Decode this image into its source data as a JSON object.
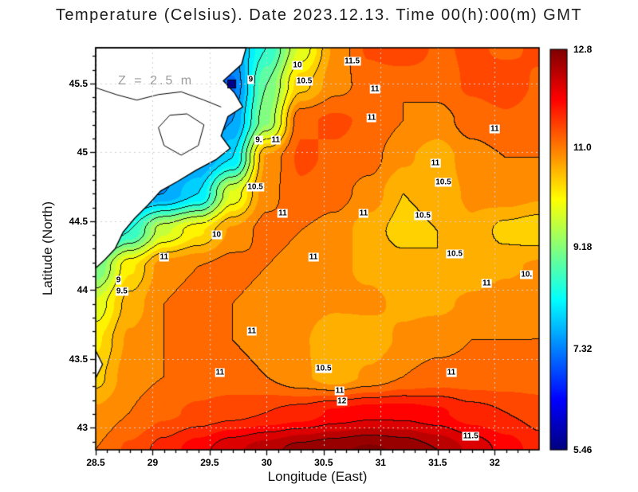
{
  "title": "Temperature (Celsius). Date 2023.12.13. Time 00(h):00(m) GMT",
  "annotation": {
    "text": "Z = 2.5 m",
    "marker": "square",
    "marker_color": "#00008b",
    "marker_lon": 29.69,
    "marker_lat": 45.5
  },
  "axes": {
    "xlabel": "Longitude (East)",
    "ylabel": "Latitude (North)",
    "xlim": [
      28.5,
      32.39
    ],
    "ylim": [
      42.84,
      45.76
    ],
    "xticks": [
      28.5,
      29,
      29.5,
      30,
      30.5,
      31,
      31.5,
      32
    ],
    "xtick_labels": [
      "28.5",
      "29",
      "29.5",
      "30",
      "30.5",
      "31",
      "31.5",
      "32"
    ],
    "yticks": [
      43,
      43.5,
      44,
      44.5,
      45,
      45.5
    ],
    "ytick_labels": [
      "43",
      "43.5",
      "44",
      "44.5",
      "45",
      "45.5"
    ],
    "minor_tick_step": 0.1,
    "grid": "dotted"
  },
  "colorbar": {
    "min": 5.46,
    "max": 12.8,
    "labels": [
      "12.8",
      "11.0",
      "9.18",
      "7.32",
      "5.46"
    ],
    "label_values": [
      12.8,
      11.0,
      9.18,
      7.32,
      5.46
    ]
  },
  "chart_data": {
    "type": "heatmap",
    "variable": "Temperature (Celsius)",
    "date": "2023.12.13",
    "time": "00(h):00(m) GMT",
    "depth": "Z = 2.5 m",
    "contour_interval": 0.5,
    "fill_interval": 0.25,
    "grid_color": "#cfcfcf",
    "land_color": "#ffffff",
    "colormap": {
      "name": "jet",
      "stops": [
        [
          5.46,
          "#000080"
        ],
        [
          6.38,
          "#0000ff"
        ],
        [
          8.21,
          "#00ffff"
        ],
        [
          10.04,
          "#ffff00"
        ],
        [
          11.88,
          "#ff0000"
        ],
        [
          12.8,
          "#800000"
        ]
      ]
    },
    "lon": [
      28.5,
      28.8,
      29.1,
      29.4,
      29.7,
      30.0,
      30.3,
      30.6,
      30.9,
      31.2,
      31.5,
      31.8,
      32.1,
      32.4
    ],
    "lat": [
      45.76,
      45.49,
      45.23,
      44.96,
      44.7,
      44.43,
      44.17,
      43.9,
      43.64,
      43.37,
      43.11,
      42.84
    ],
    "grid": [
      [
        7.0,
        7.0,
        7.0,
        7.0,
        7.5,
        8.5,
        9.8,
        10.8,
        11.3,
        11.5,
        11.2,
        11.3,
        11.2,
        11.3
      ],
      [
        7.0,
        7.0,
        7.0,
        7.0,
        7.2,
        9.0,
        10.4,
        10.9,
        11.1,
        11.0,
        11.1,
        11.3,
        11.4,
        11.2
      ],
      [
        7.0,
        7.0,
        7.0,
        7.0,
        7.5,
        9.2,
        11.2,
        11.3,
        11.2,
        11.0,
        10.9,
        11.1,
        11.2,
        11.1
      ],
      [
        7.2,
        7.2,
        7.2,
        7.4,
        8.0,
        10.8,
        11.3,
        11.2,
        11.1,
        10.8,
        10.6,
        10.9,
        11.0,
        11.0
      ],
      [
        7.4,
        7.4,
        7.5,
        8.0,
        9.8,
        10.9,
        11.2,
        11.1,
        10.9,
        10.5,
        10.6,
        10.8,
        10.9,
        10.8
      ],
      [
        7.8,
        8.5,
        9.7,
        10.2,
        10.8,
        11.1,
        11.0,
        10.9,
        10.6,
        10.4,
        10.5,
        10.7,
        10.4,
        10.3
      ],
      [
        9.0,
        10.2,
        10.9,
        11.0,
        11.1,
        11.0,
        10.9,
        10.8,
        10.7,
        10.6,
        10.5,
        10.6,
        10.7,
        10.8
      ],
      [
        9.8,
        10.6,
        11.0,
        11.1,
        11.0,
        10.9,
        10.9,
        10.8,
        10.8,
        10.7,
        10.7,
        10.8,
        10.9,
        11.0
      ],
      [
        10.2,
        10.8,
        11.0,
        11.1,
        11.0,
        10.9,
        10.8,
        10.5,
        10.6,
        10.8,
        10.9,
        11.0,
        11.0,
        11.0
      ],
      [
        10.4,
        10.9,
        11.0,
        11.1,
        11.1,
        11.0,
        10.8,
        10.6,
        10.8,
        11.0,
        11.1,
        11.1,
        11.1,
        11.1
      ],
      [
        10.8,
        11.0,
        11.2,
        11.3,
        11.4,
        11.5,
        11.6,
        11.8,
        11.9,
        11.9,
        11.8,
        11.6,
        11.5,
        11.4
      ],
      [
        11.0,
        11.3,
        11.6,
        11.9,
        12.2,
        12.4,
        12.6,
        12.7,
        12.8,
        12.7,
        12.5,
        12.2,
        11.9,
        11.6
      ]
    ],
    "land_polygons": [
      [
        [
          28.5,
          45.76
        ],
        [
          29.82,
          45.76
        ],
        [
          29.78,
          45.64
        ],
        [
          29.62,
          45.52
        ],
        [
          29.72,
          45.43
        ],
        [
          29.79,
          45.33
        ],
        [
          29.66,
          45.26
        ],
        [
          29.6,
          45.12
        ],
        [
          29.68,
          45.03
        ],
        [
          29.56,
          44.95
        ],
        [
          29.38,
          44.87
        ],
        [
          29.22,
          44.79
        ],
        [
          29.07,
          44.72
        ],
        [
          28.96,
          44.62
        ],
        [
          28.84,
          44.52
        ],
        [
          28.74,
          44.42
        ],
        [
          28.67,
          44.3
        ],
        [
          28.58,
          44.22
        ],
        [
          28.5,
          44.16
        ]
      ],
      [
        [
          28.5,
          43.56
        ],
        [
          28.56,
          43.46
        ],
        [
          28.5,
          43.36
        ]
      ]
    ],
    "water_lines": [
      [
        [
          28.5,
          45.47
        ],
        [
          28.68,
          45.42
        ],
        [
          28.86,
          45.38
        ],
        [
          29.05,
          45.42
        ],
        [
          29.25,
          45.44
        ],
        [
          29.45,
          45.38
        ],
        [
          29.6,
          45.33
        ]
      ],
      [
        [
          29.3,
          45.28
        ],
        [
          29.45,
          45.2
        ],
        [
          29.4,
          45.05
        ],
        [
          29.25,
          44.98
        ],
        [
          29.1,
          45.05
        ],
        [
          29.05,
          45.18
        ],
        [
          29.15,
          45.27
        ],
        [
          29.3,
          45.28
        ]
      ]
    ],
    "contour_labels": [
      {
        "v": "11.5",
        "lon": 30.75,
        "lat": 45.66
      },
      {
        "v": "10",
        "lon": 30.27,
        "lat": 45.63
      },
      {
        "v": "10.5",
        "lon": 30.33,
        "lat": 45.52
      },
      {
        "v": "9",
        "lon": 29.86,
        "lat": 45.53
      },
      {
        "v": "11",
        "lon": 30.95,
        "lat": 45.46
      },
      {
        "v": "11",
        "lon": 30.92,
        "lat": 45.25
      },
      {
        "v": "11",
        "lon": 32.0,
        "lat": 45.17
      },
      {
        "v": "9.",
        "lon": 29.93,
        "lat": 45.09
      },
      {
        "v": "11",
        "lon": 30.08,
        "lat": 45.09
      },
      {
        "v": "11",
        "lon": 31.48,
        "lat": 44.92
      },
      {
        "v": "10.5",
        "lon": 29.9,
        "lat": 44.75
      },
      {
        "v": "10.5",
        "lon": 31.55,
        "lat": 44.78
      },
      {
        "v": "11",
        "lon": 30.14,
        "lat": 44.56
      },
      {
        "v": "11",
        "lon": 30.85,
        "lat": 44.56
      },
      {
        "v": "10.5",
        "lon": 31.37,
        "lat": 44.54
      },
      {
        "v": "10",
        "lon": 29.56,
        "lat": 44.4
      },
      {
        "v": "11",
        "lon": 29.1,
        "lat": 44.24
      },
      {
        "v": "11",
        "lon": 30.41,
        "lat": 44.24
      },
      {
        "v": "10.5",
        "lon": 31.65,
        "lat": 44.26
      },
      {
        "v": "10.",
        "lon": 32.28,
        "lat": 44.11
      },
      {
        "v": "11",
        "lon": 31.93,
        "lat": 44.05
      },
      {
        "v": "9",
        "lon": 28.7,
        "lat": 44.07
      },
      {
        "v": "9.5",
        "lon": 28.73,
        "lat": 43.99
      },
      {
        "v": "11",
        "lon": 29.87,
        "lat": 43.7
      },
      {
        "v": "11",
        "lon": 29.59,
        "lat": 43.4
      },
      {
        "v": "10.5",
        "lon": 30.5,
        "lat": 43.43
      },
      {
        "v": "11",
        "lon": 31.62,
        "lat": 43.4
      },
      {
        "v": "11",
        "lon": 30.64,
        "lat": 43.27
      },
      {
        "v": "12",
        "lon": 30.66,
        "lat": 43.19
      },
      {
        "v": "11.5",
        "lon": 31.79,
        "lat": 42.94
      }
    ]
  }
}
